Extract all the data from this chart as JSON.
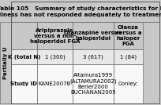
{
  "title_line1": "Table 105   Summary of study characteristics for RCT",
  "title_line2": "illness has not responded adequately to treatment",
  "col_headers": [
    "",
    "Aripiprazole\nversus a non-\nhaloperidol FGA",
    "Olanzapine versus\nhaloperidol",
    "Olanza\nversus a\nhaloper\nFGA"
  ],
  "rows": [
    [
      "K (total N)",
      "1 (300)",
      "3 (617)",
      "1 (84)"
    ],
    [
      "Study ID",
      "KANE2007B",
      "Altamura1999\n(ALTAMURA2002)\nBerier2000\nBUCHANAN2005",
      "Conley:"
    ]
  ],
  "side_label": "Partially U",
  "bg_color": "#c8c8c8",
  "header_bg": "#c8c8c8",
  "row0_bg": "#e8e8e8",
  "row1_bg": "#f8f8f8",
  "title_bg": "#c8c8c8",
  "border_color": "#555555",
  "text_color": "#000000",
  "title_fontsize": 5.3,
  "cell_fontsize": 5.0,
  "header_fontsize": 5.0,
  "side_fontsize": 5.0
}
